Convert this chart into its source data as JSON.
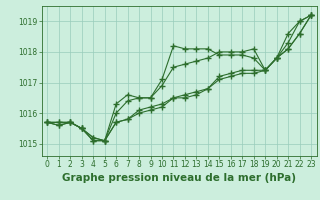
{
  "background_color": "#cceedd",
  "grid_color": "#99ccbb",
  "line_color": "#2d6e2d",
  "title": "Graphe pression niveau de la mer (hPa)",
  "xlim": [
    -0.5,
    23.5
  ],
  "ylim": [
    1014.6,
    1019.5
  ],
  "yticks": [
    1015,
    1016,
    1017,
    1018,
    1019
  ],
  "xticks": [
    0,
    1,
    2,
    3,
    4,
    5,
    6,
    7,
    8,
    9,
    10,
    11,
    12,
    13,
    14,
    15,
    16,
    17,
    18,
    19,
    20,
    21,
    22,
    23
  ],
  "series": [
    [
      1015.7,
      1015.7,
      1015.7,
      1015.5,
      1015.2,
      1015.1,
      1016.3,
      1016.6,
      1016.5,
      1016.5,
      1017.1,
      1018.2,
      1018.1,
      1018.1,
      1018.1,
      1017.9,
      1017.9,
      1017.9,
      1017.8,
      1017.4,
      1017.8,
      1018.6,
      1019.0,
      1019.2
    ],
    [
      1015.7,
      1015.6,
      1015.7,
      1015.5,
      1015.1,
      1015.1,
      1015.7,
      1015.8,
      1016.0,
      1016.1,
      1016.2,
      1016.5,
      1016.5,
      1016.6,
      1016.8,
      1017.1,
      1017.2,
      1017.3,
      1017.3,
      1017.4,
      1017.8,
      1018.1,
      1018.6,
      1019.2
    ],
    [
      1015.7,
      1015.6,
      1015.7,
      1015.5,
      1015.1,
      1015.1,
      1015.7,
      1015.8,
      1016.1,
      1016.2,
      1016.3,
      1016.5,
      1016.6,
      1016.7,
      1016.8,
      1017.2,
      1017.3,
      1017.4,
      1017.4,
      1017.4,
      1017.8,
      1018.1,
      1018.6,
      1019.2
    ],
    [
      1015.7,
      1015.7,
      1015.7,
      1015.5,
      1015.2,
      1015.1,
      1016.0,
      1016.4,
      1016.5,
      1016.5,
      1016.9,
      1017.5,
      1017.6,
      1017.7,
      1017.8,
      1018.0,
      1018.0,
      1018.0,
      1018.1,
      1017.4,
      1017.8,
      1018.3,
      1019.0,
      1019.2
    ]
  ],
  "marker": "+",
  "markersize": 4.0,
  "linewidth": 0.8,
  "title_fontsize": 7.5,
  "tick_fontsize": 5.5
}
